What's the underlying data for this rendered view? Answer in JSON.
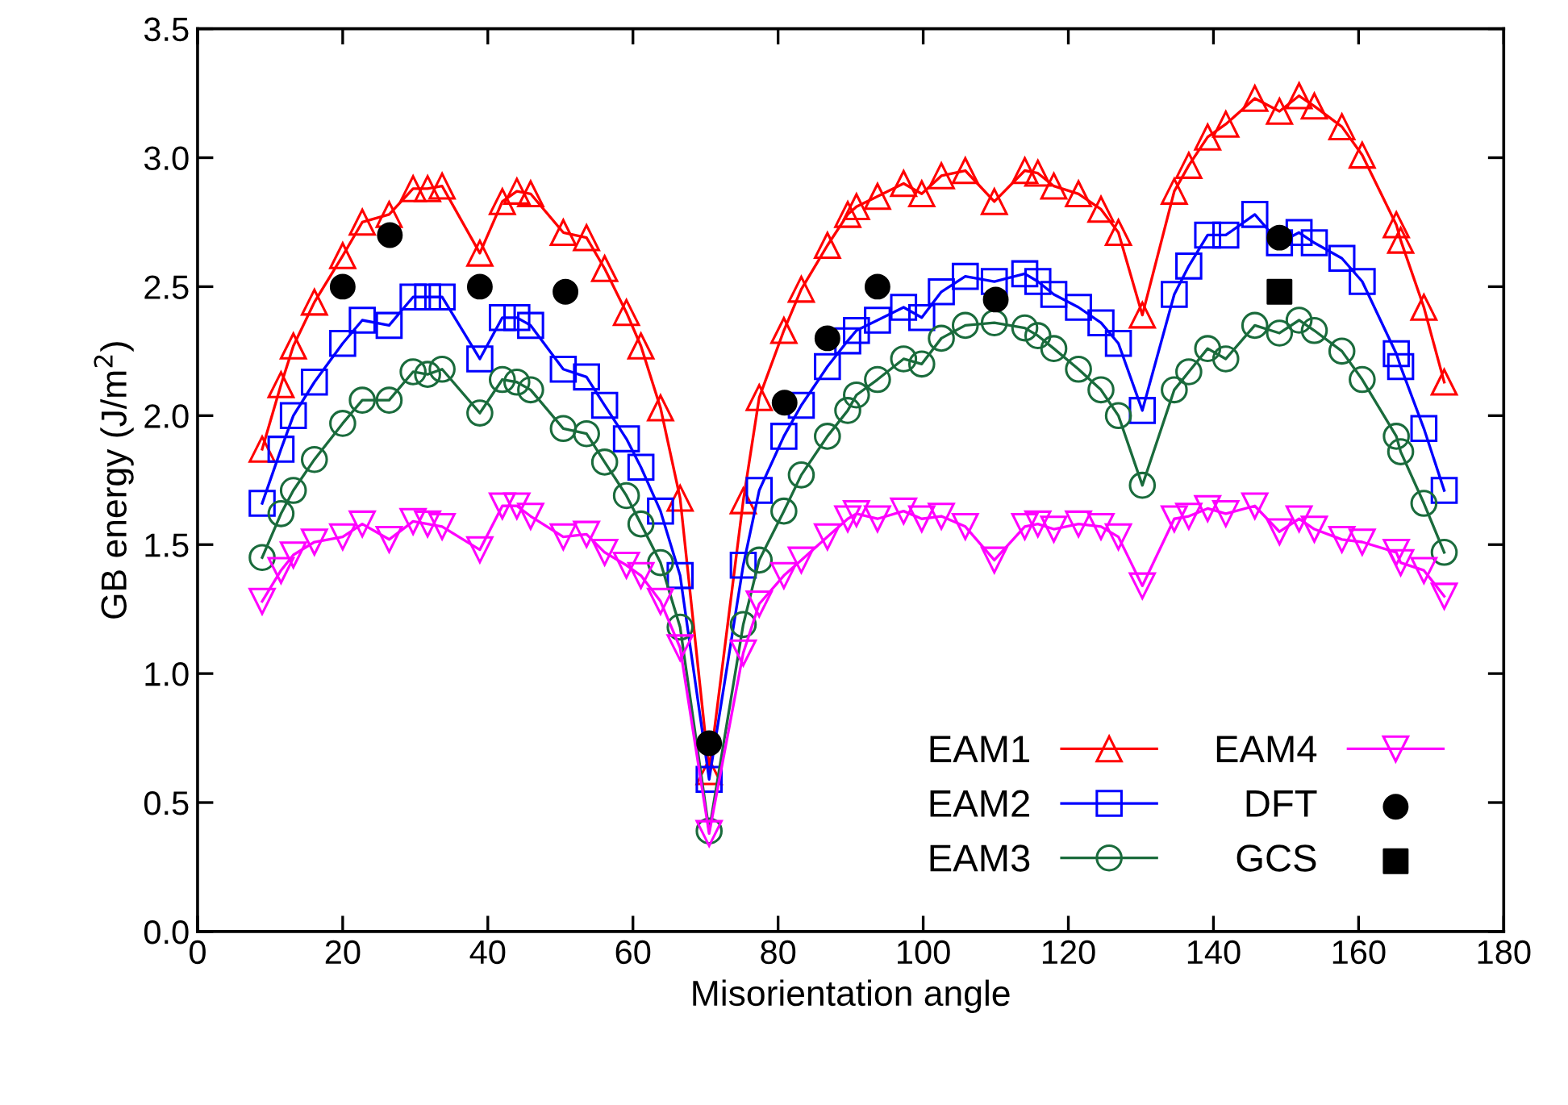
{
  "chart_data": {
    "type": "line",
    "xlabel": "Misorientation angle",
    "ylabel": "GB energy (J/m$^{2}$)",
    "xlim": [
      0,
      180
    ],
    "xticks": [
      0,
      20,
      40,
      60,
      80,
      100,
      120,
      140,
      160,
      180
    ],
    "ylim": [
      0,
      3.5
    ],
    "yticks": [
      {
        "value": 0,
        "label": "0.0"
      },
      {
        "value": 0.5,
        "label": "0.5"
      },
      {
        "value": 1,
        "label": "1.0"
      },
      {
        "value": 1.5,
        "label": "1.5"
      },
      {
        "value": 2,
        "label": "2.0"
      },
      {
        "value": 2.5,
        "label": "2.5"
      },
      {
        "value": 3,
        "label": "3.0"
      },
      {
        "value": 3.5,
        "label": "3.5"
      }
    ],
    "grid": false,
    "legend": "bottom right",
    "x": [
      8.9,
      11.5,
      13.2,
      16.1,
      20.0,
      22.7,
      26.4,
      29.7,
      31.7,
      33.7,
      38.9,
      42.0,
      44.0,
      45.9,
      50.4,
      53.6,
      56.1,
      59.1,
      61.1,
      63.8,
      66.5,
      70.5,
      75.2,
      77.4,
      80.8,
      83.2,
      86.8,
      89.6,
      90.8,
      93.7,
      97.3,
      99.8,
      102.5,
      105.8,
      109.8,
      114.0,
      115.8,
      118.0,
      121.4,
      124.5,
      126.9,
      130.2,
      134.6,
      136.6,
      139.2,
      141.7,
      145.7,
      149.1,
      151.8,
      153.9,
      157.7,
      160.5,
      165.2,
      165.8,
      169.0,
      171.8
    ],
    "series": [
      {
        "name": "EAM1",
        "marker": "triangle",
        "color": "#ff0000",
        "values": [
          1.87,
          2.12,
          2.27,
          2.44,
          2.62,
          2.75,
          2.78,
          2.88,
          2.88,
          2.89,
          2.63,
          2.83,
          2.87,
          2.86,
          2.71,
          2.69,
          2.57,
          2.4,
          2.27,
          2.03,
          1.68,
          0.62,
          1.67,
          2.07,
          2.33,
          2.49,
          2.66,
          2.78,
          2.81,
          2.85,
          2.9,
          2.86,
          2.93,
          2.95,
          2.83,
          2.95,
          2.94,
          2.89,
          2.86,
          2.8,
          2.71,
          2.39,
          2.87,
          2.97,
          3.08,
          3.13,
          3.23,
          3.18,
          3.24,
          3.2,
          3.12,
          3.01,
          2.74,
          2.68,
          2.42,
          2.13
        ]
      },
      {
        "name": "EAM2",
        "marker": "square",
        "color": "#0000ff",
        "values": [
          1.66,
          1.87,
          2.0,
          2.13,
          2.28,
          2.37,
          2.35,
          2.46,
          2.46,
          2.46,
          2.22,
          2.38,
          2.38,
          2.35,
          2.18,
          2.15,
          2.04,
          1.91,
          1.8,
          1.63,
          1.38,
          0.59,
          1.42,
          1.71,
          1.92,
          2.04,
          2.19,
          2.29,
          2.33,
          2.37,
          2.42,
          2.38,
          2.48,
          2.54,
          2.52,
          2.55,
          2.52,
          2.47,
          2.42,
          2.36,
          2.28,
          2.02,
          2.47,
          2.58,
          2.7,
          2.7,
          2.78,
          2.67,
          2.71,
          2.67,
          2.61,
          2.52,
          2.24,
          2.19,
          1.95,
          1.71
        ]
      },
      {
        "name": "EAM3",
        "marker": "circle",
        "color": "#1a6b3c",
        "values": [
          1.45,
          1.62,
          1.71,
          1.83,
          1.97,
          2.06,
          2.06,
          2.17,
          2.16,
          2.18,
          2.01,
          2.14,
          2.13,
          2.1,
          1.95,
          1.93,
          1.82,
          1.69,
          1.58,
          1.43,
          1.18,
          0.39,
          1.19,
          1.44,
          1.63,
          1.77,
          1.92,
          2.02,
          2.08,
          2.14,
          2.22,
          2.2,
          2.3,
          2.35,
          2.36,
          2.34,
          2.31,
          2.26,
          2.18,
          2.1,
          2.0,
          1.73,
          2.1,
          2.17,
          2.26,
          2.22,
          2.35,
          2.32,
          2.37,
          2.33,
          2.25,
          2.14,
          1.92,
          1.86,
          1.66,
          1.47
        ]
      },
      {
        "name": "EAM4",
        "marker": "triangle_down",
        "color": "#ff00ff",
        "values": [
          1.28,
          1.4,
          1.46,
          1.51,
          1.53,
          1.58,
          1.52,
          1.59,
          1.58,
          1.57,
          1.48,
          1.65,
          1.65,
          1.61,
          1.53,
          1.54,
          1.47,
          1.42,
          1.38,
          1.28,
          1.1,
          0.38,
          1.08,
          1.27,
          1.38,
          1.44,
          1.53,
          1.6,
          1.62,
          1.6,
          1.63,
          1.6,
          1.61,
          1.57,
          1.44,
          1.57,
          1.58,
          1.56,
          1.58,
          1.57,
          1.53,
          1.34,
          1.6,
          1.61,
          1.64,
          1.62,
          1.65,
          1.55,
          1.6,
          1.56,
          1.52,
          1.51,
          1.47,
          1.43,
          1.4,
          1.3
        ]
      },
      {
        "name": "DFT",
        "type": "scatter",
        "marker": "circle",
        "color": "#000000",
        "x": [
          20.0,
          26.5,
          38.9,
          50.7,
          70.5,
          80.9,
          86.8,
          93.7,
          110.0,
          149.1
        ],
        "values": [
          2.5,
          2.7,
          2.5,
          2.48,
          0.73,
          2.05,
          2.3,
          2.5,
          2.45,
          2.69
        ]
      },
      {
        "name": "GCS",
        "type": "scatter",
        "marker": "square",
        "color": "#000000",
        "x": [
          149.1
        ],
        "values": [
          2.48
        ]
      }
    ]
  }
}
